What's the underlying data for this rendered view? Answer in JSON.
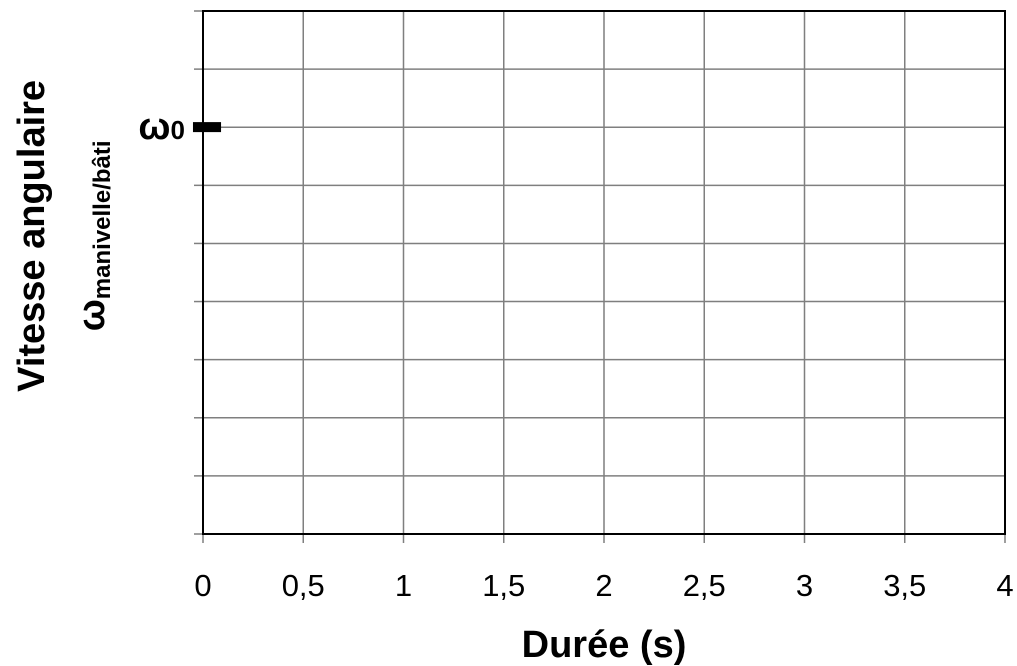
{
  "chart_data": {
    "type": "line",
    "title": "",
    "xlabel": "Durée (s)",
    "ylabel": {
      "line1": "Vitesse angulaire",
      "symbol": "ω",
      "subscript": "manivelle/bâti"
    },
    "xlim": [
      0,
      4
    ],
    "x_ticks": [
      "0",
      "0,5",
      "1",
      "1,5",
      "2",
      "2,5",
      "3",
      "3,5",
      "4"
    ],
    "y_grid_divisions": 9,
    "grid": true,
    "series": [],
    "annotations": [
      {
        "text": "ω₀",
        "symbol": "ω",
        "subscript": "0",
        "x_range": [
          -0.05,
          0.09
        ],
        "y_level_fraction": 0.778
      }
    ]
  },
  "colors": {
    "grid": "#7f7f7f",
    "border": "#000000",
    "text": "#000000"
  }
}
